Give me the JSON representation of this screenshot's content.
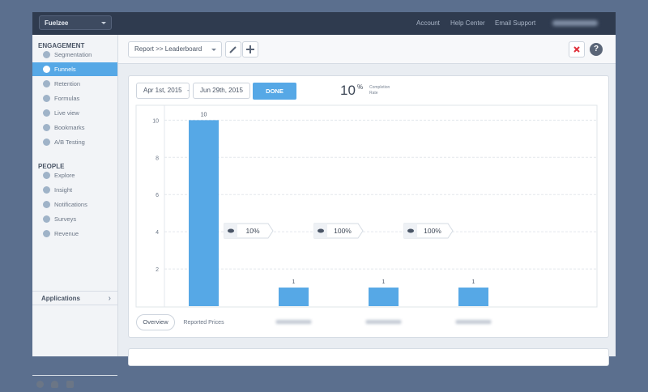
{
  "top_bar": {
    "app_selector": "Fuelzee",
    "links": [
      "Account",
      "Help Center",
      "Email Support"
    ]
  },
  "sidebar": {
    "sections": [
      {
        "heading": "ENGAGEMENT",
        "items": [
          "Segmentation",
          "Funnels",
          "Retention",
          "Formulas",
          "Live view",
          "Bookmarks",
          "A/B Testing"
        ]
      },
      {
        "heading": "PEOPLE",
        "items": [
          "Explore",
          "Insight",
          "Notifications",
          "Surveys",
          "Revenue"
        ]
      }
    ],
    "applications": "Applications"
  },
  "toolbar": {
    "report_selector": "Report >> Leaderboard"
  },
  "filters": {
    "start_date": "Apr 1st, 2015",
    "separator": "-",
    "end_date": "Jun 29th, 2015",
    "done_button": "DONE",
    "completion_value": 10,
    "completion_unit": "%",
    "completion_caption": [
      "Completion",
      "Rate"
    ]
  },
  "chart_data": {
    "type": "bar",
    "categories": [
      "Reported Prices",
      null,
      null,
      null
    ],
    "values": [
      10,
      1,
      1,
      1
    ],
    "color": "#56a8e6",
    "ylim": [
      0,
      10.8
    ],
    "yticks": [
      2,
      4,
      6,
      8,
      10
    ],
    "grid": true,
    "step_rates": [
      "10%",
      "100%",
      "100%"
    ]
  },
  "overview_button": "Overview"
}
